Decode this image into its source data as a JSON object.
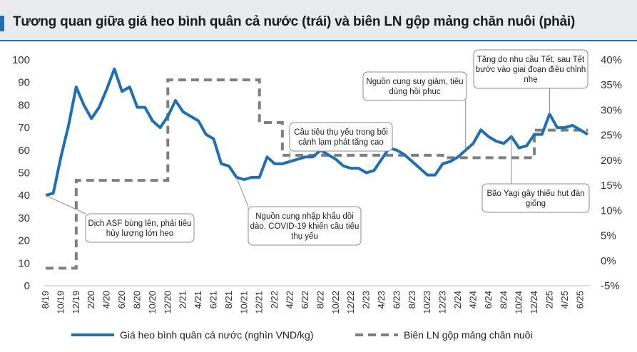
{
  "title": "Tương quan giữa giá heo bình quân cả nước (trái) và biên LN gộp mảng chăn nuôi (phải)",
  "chart_data": {
    "type": "line",
    "x": [
      "8/19",
      "10/19",
      "12/19",
      "2/20",
      "4/20",
      "6/20",
      "8/20",
      "10/20",
      "12/20",
      "2/21",
      "4/21",
      "6/21",
      "8/21",
      "10/21",
      "12/21",
      "2/22",
      "4/22",
      "6/22",
      "8/22",
      "10/22",
      "12/22",
      "2/23",
      "4/23",
      "6/23",
      "8/23",
      "10/23",
      "12/23",
      "2/24",
      "4/24",
      "6/24",
      "8/24",
      "10/24",
      "12/24",
      "2/25",
      "4/25",
      "6/25"
    ],
    "x_tick_labels": [
      "8/19",
      "10/19",
      "12/19",
      "2/20",
      "4/20",
      "6/20",
      "8/20",
      "10/20",
      "12/20",
      "2/21",
      "4/21",
      "6/21",
      "8/21",
      "10/21",
      "12/21",
      "2/22",
      "4/22",
      "6/22",
      "8/22",
      "10/22",
      "12/22",
      "2/23",
      "4/23",
      "6/23",
      "8/23",
      "10/23",
      "12/23",
      "2/24",
      "4/24",
      "6/24",
      "8/24",
      "10/24",
      "12/24",
      "2/25",
      "4/25",
      "6/25"
    ],
    "y_left_ticks": [
      "0",
      "10",
      "20",
      "30",
      "40",
      "50",
      "60",
      "70",
      "80",
      "90",
      "100"
    ],
    "y_right_ticks": [
      "-5%",
      "0%",
      "5%",
      "10%",
      "15%",
      "20%",
      "25%",
      "30%",
      "35%",
      "40%"
    ],
    "ylim_left": [
      0,
      100
    ],
    "ylim_right": [
      -5,
      40
    ],
    "legend_position": "bottom",
    "series": [
      {
        "name": "Giá heo bình quân cả nước (nghìn VND/kg)",
        "axis": "left",
        "color": "#1f6fb5",
        "style": "solid",
        "x": [
          "8/19",
          "9/19",
          "10/19",
          "11/19",
          "12/19",
          "1/20",
          "2/20",
          "3/20",
          "4/20",
          "5/20",
          "6/20",
          "7/20",
          "8/20",
          "9/20",
          "10/20",
          "11/20",
          "12/20",
          "1/21",
          "2/21",
          "3/21",
          "4/21",
          "5/21",
          "6/21",
          "7/21",
          "8/21",
          "9/21",
          "10/21",
          "11/21",
          "12/21",
          "1/22",
          "2/22",
          "3/22",
          "4/22",
          "5/22",
          "6/22",
          "7/22",
          "8/22",
          "9/22",
          "10/22",
          "11/22",
          "12/22",
          "1/23",
          "2/23",
          "3/23",
          "4/23",
          "5/23",
          "6/23",
          "7/23",
          "8/23",
          "9/23",
          "10/23",
          "11/23",
          "12/23",
          "1/24",
          "2/24",
          "3/24",
          "4/24",
          "5/24",
          "6/24",
          "7/24",
          "8/24",
          "9/24",
          "10/24",
          "11/24",
          "12/24",
          "1/25",
          "2/25",
          "3/25",
          "4/25",
          "5/25",
          "6/25",
          "7/25"
        ],
        "values": [
          40,
          41,
          57,
          71,
          88,
          80,
          74,
          79,
          87,
          96,
          86,
          88,
          79,
          79,
          73,
          70,
          75,
          82,
          77,
          75,
          73,
          67,
          65,
          54,
          53,
          48,
          47,
          48,
          48,
          57,
          54,
          54,
          55,
          56,
          57,
          57,
          60,
          58,
          56,
          53,
          52,
          52,
          50,
          51,
          56,
          61,
          60,
          58,
          55,
          52,
          49,
          49,
          54,
          55,
          57,
          60,
          63,
          69,
          66,
          64,
          63,
          66,
          61,
          62,
          67,
          67,
          76,
          70,
          70,
          71,
          69,
          67
        ]
      },
      {
        "name": "Biên LN gộp mảng chăn nuôi",
        "axis": "right",
        "color": "#7f7f7f",
        "style": "dashed",
        "segments": [
          {
            "from": "8/19",
            "to": "12/19",
            "value": -1.5
          },
          {
            "from": "12/19",
            "to": "12/20",
            "value": 16
          },
          {
            "from": "12/20",
            "to": "12/21",
            "value": 36
          },
          {
            "from": "12/21",
            "to": "3/22",
            "value": 27.5
          },
          {
            "from": "3/22",
            "to": "12/23",
            "value": 21
          },
          {
            "from": "12/23",
            "to": "12/24",
            "value": 20.5
          },
          {
            "from": "12/24",
            "to": "7/25",
            "value": 26
          }
        ]
      }
    ],
    "annotations": [
      {
        "id": "asf",
        "lines": [
          "Dịch ASF bùng lên, phải tiêu",
          "hủy lượng lớn heo"
        ],
        "point": "8/19"
      },
      {
        "id": "import",
        "lines": [
          "Nguồn cung nhập khẩu dồi",
          "dào, COVID-19 khiến cầu tiêu",
          "thụ yếu"
        ],
        "point": "9/21"
      },
      {
        "id": "demand",
        "lines": [
          "Cầu tiêu thụ yếu trong bối",
          "cảnh lạm phát tăng cao"
        ],
        "point": "4/22"
      },
      {
        "id": "supply",
        "lines": [
          "Nguồn cung suy giảm, tiêu",
          "dùng hồi phục"
        ],
        "point": "3/24"
      },
      {
        "id": "tet",
        "lines": [
          "Tăng do nhu cầu Tết, sau Tết",
          "bước vào giai đoạn điều chỉnh",
          "nhẹ"
        ],
        "point": "2/25"
      },
      {
        "id": "yagi",
        "lines": [
          "Bão Yagi gây thiếu hụt đàn",
          "giống"
        ],
        "point": "9/24"
      }
    ]
  }
}
